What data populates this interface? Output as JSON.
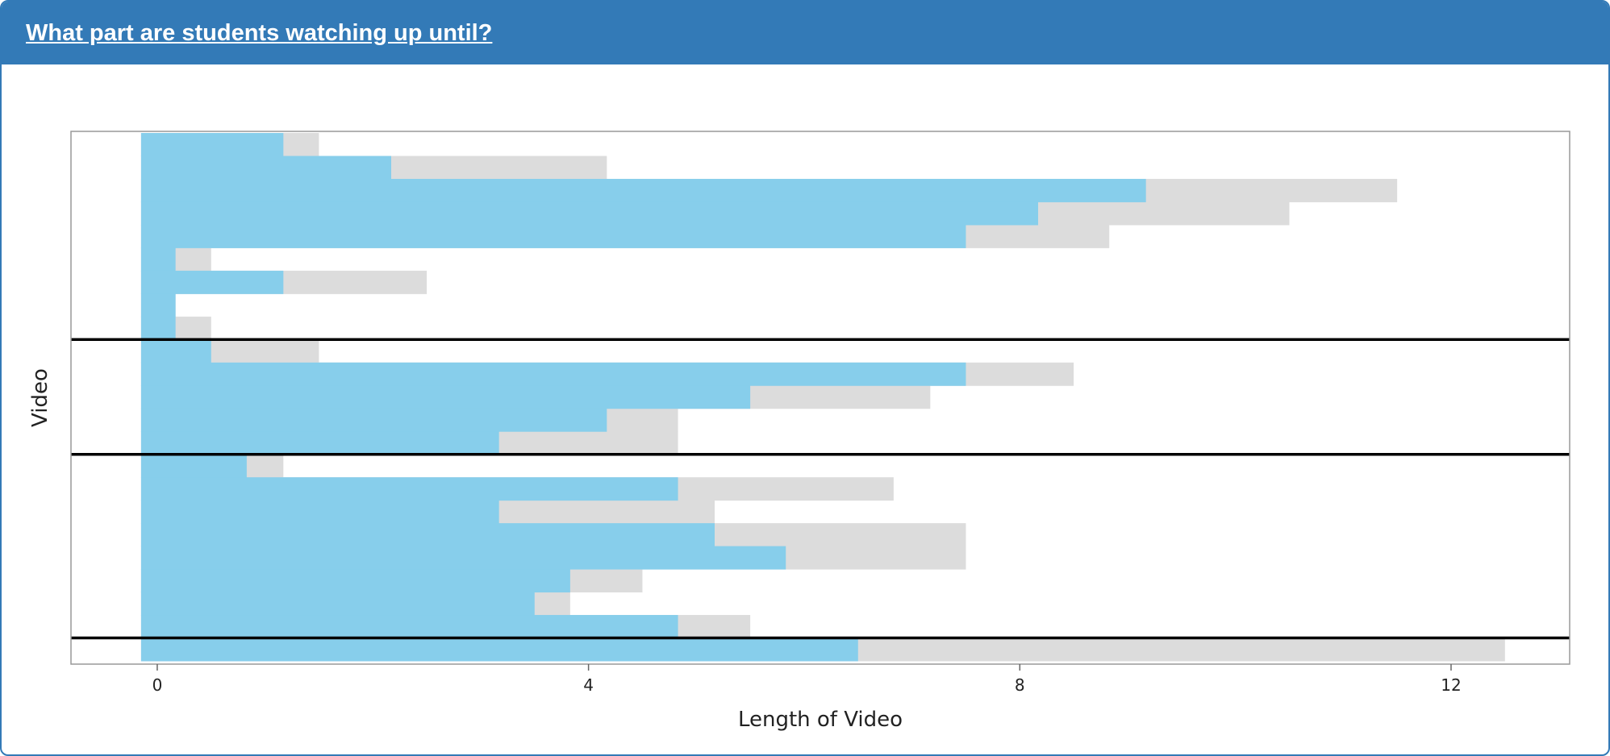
{
  "panel": {
    "title": "What part are students watching up until?"
  },
  "chart_data": {
    "type": "bar",
    "orientation": "horizontal",
    "xlabel": "Length of Video",
    "ylabel": "Video",
    "xlim": [
      -0.8,
      13.1
    ],
    "xticks": [
      0,
      4,
      8,
      12
    ],
    "xtick_labels": [
      "0",
      "4",
      "8",
      "12"
    ],
    "grid": false,
    "colors": {
      "watched": "#87ceeb",
      "length": "#dcdcdc",
      "separator": "#000000",
      "border": "#999999"
    },
    "rows": [
      {
        "start": -0.15,
        "watched": 1.17,
        "length": 1.5
      },
      {
        "start": -0.15,
        "watched": 2.17,
        "length": 4.17
      },
      {
        "start": -0.15,
        "watched": 9.17,
        "length": 11.5
      },
      {
        "start": -0.15,
        "watched": 8.17,
        "length": 10.5
      },
      {
        "start": -0.15,
        "watched": 7.5,
        "length": 8.83
      },
      {
        "start": -0.15,
        "watched": 0.17,
        "length": 0.5
      },
      {
        "start": -0.15,
        "watched": 1.17,
        "length": 2.5
      },
      {
        "start": -0.15,
        "watched": 0.17,
        "length": 0.17
      },
      {
        "start": -0.15,
        "watched": 0.17,
        "length": 0.5
      },
      {
        "start": -0.15,
        "watched": 0.5,
        "length": 1.5
      },
      {
        "start": -0.15,
        "watched": 7.5,
        "length": 8.5
      },
      {
        "start": -0.15,
        "watched": 5.5,
        "length": 7.17
      },
      {
        "start": -0.15,
        "watched": 4.17,
        "length": 4.83
      },
      {
        "start": -0.15,
        "watched": 3.17,
        "length": 4.83
      },
      {
        "start": -0.15,
        "watched": 0.83,
        "length": 1.17
      },
      {
        "start": -0.15,
        "watched": 4.83,
        "length": 6.83
      },
      {
        "start": -0.15,
        "watched": 3.17,
        "length": 5.17
      },
      {
        "start": -0.15,
        "watched": 5.17,
        "length": 7.5
      },
      {
        "start": -0.15,
        "watched": 5.83,
        "length": 7.5
      },
      {
        "start": -0.15,
        "watched": 3.83,
        "length": 4.5
      },
      {
        "start": -0.15,
        "watched": 3.5,
        "length": 3.83
      },
      {
        "start": -0.15,
        "watched": 4.83,
        "length": 5.5
      },
      {
        "start": -0.15,
        "watched": 6.5,
        "length": 12.5
      }
    ],
    "group_separators_after_row": [
      9,
      14,
      22
    ]
  }
}
